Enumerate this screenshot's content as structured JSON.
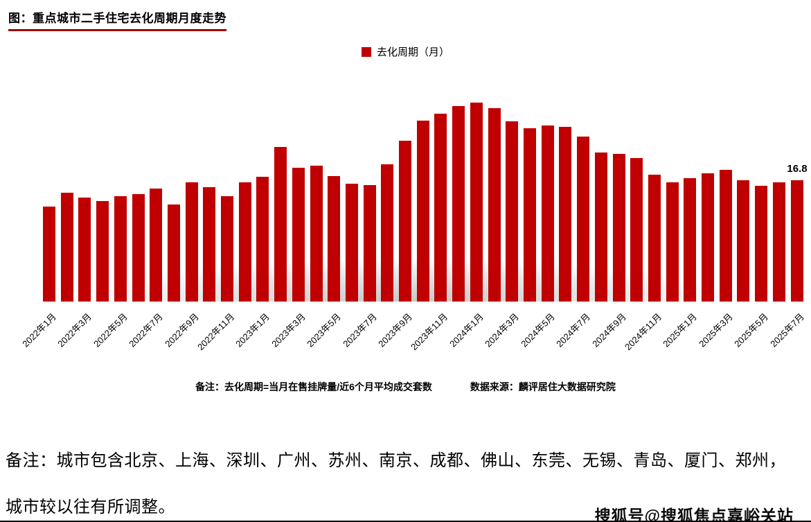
{
  "chart": {
    "title": "图：重点城市二手住宅去化周期月度走势",
    "legend": "去化周期（月）",
    "note_formula": "备注：去化周期=当月在售挂牌量/近6个月平均成交套数",
    "note_source": "数据来源：麟评居住大数据研究院",
    "last_value_label": "16.8",
    "bar_color": "#c00000"
  },
  "chart_data": {
    "type": "bar",
    "title": "重点城市二手住宅去化周期月度走势",
    "series_name": "去化周期（月）",
    "categories": [
      "2022年1月",
      "2022年2月",
      "2022年3月",
      "2022年4月",
      "2022年5月",
      "2022年6月",
      "2022年7月",
      "2022年8月",
      "2022年9月",
      "2022年10月",
      "2022年11月",
      "2022年12月",
      "2023年1月",
      "2023年2月",
      "2023年3月",
      "2023年4月",
      "2023年5月",
      "2023年6月",
      "2023年7月",
      "2023年8月",
      "2023年9月",
      "2023年10月",
      "2023年11月",
      "2023年12月",
      "2024年1月",
      "2024年2月",
      "2024年3月",
      "2024年4月",
      "2024年5月",
      "2024年6月",
      "2024年7月",
      "2024年8月",
      "2024年9月",
      "2024年10月",
      "2024年11月",
      "2024年12月",
      "2025年1月",
      "2025年2月",
      "2025年3月",
      "2025年4月",
      "2025年5月",
      "2025年6月",
      "2025年7月"
    ],
    "values": [
      13.2,
      15.1,
      14.4,
      13.9,
      14.6,
      14.9,
      15.6,
      13.4,
      16.5,
      15.8,
      14.6,
      16.5,
      17.3,
      21.4,
      18.5,
      18.8,
      17.4,
      16.3,
      16.1,
      19.0,
      22.3,
      25.1,
      26.0,
      27.1,
      27.5,
      26.8,
      25.0,
      24.0,
      24.4,
      24.2,
      22.8,
      20.6,
      20.4,
      19.9,
      17.6,
      16.5,
      17.1,
      17.8,
      18.2,
      16.8,
      16.0,
      16.5,
      16.8
    ],
    "x_tick_labels": [
      "2022年1月",
      "2022年3月",
      "2022年5月",
      "2022年7月",
      "2022年9月",
      "2022年11月",
      "2023年1月",
      "2023年3月",
      "2023年5月",
      "2023年7月",
      "2023年9月",
      "2023年11月",
      "2024年1月",
      "2024年3月",
      "2024年5月",
      "2024年7月",
      "2024年9月",
      "2024年11月",
      "2025年1月",
      "2025年3月",
      "2025年5月",
      "2025年7月"
    ],
    "tick_step": 2,
    "ylim": [
      0,
      30
    ],
    "y_axis_visible": false,
    "grid": false,
    "legend_position": "top-center",
    "annotated_point": {
      "category": "2025年7月",
      "value": 16.8,
      "label": "16.8"
    },
    "bar_color": "#c00000"
  },
  "footer": {
    "note_line1": "备注：城市包含北京、上海、深圳、广州、苏州、南京、成都、佛山、东莞、无锡、青岛、厦门、郑州，",
    "note_line2": "城市较以往有所调整。",
    "watermark": "搜狐号@搜狐焦点嘉峪关站"
  }
}
